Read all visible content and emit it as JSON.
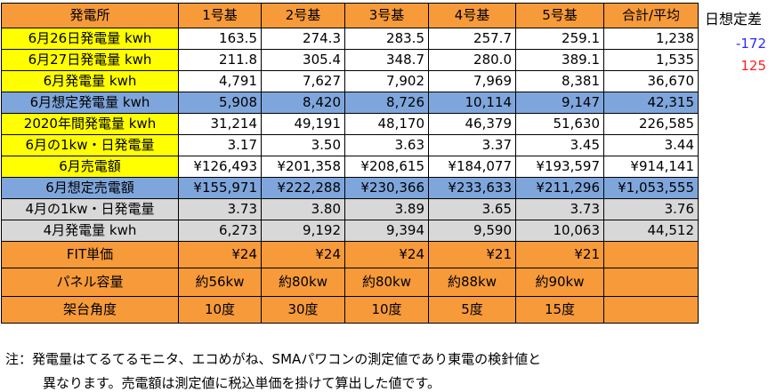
{
  "header": [
    "発電所",
    "1号基",
    "2号基",
    "3号基",
    "4号基",
    "5号基",
    "合計/平均"
  ],
  "rows": [
    {
      "label": "6月26日発電量 kwh",
      "values": [
        "163.5",
        "274.3",
        "283.5",
        "257.7",
        "259.1",
        "1,238"
      ]
    },
    {
      "label": "6月27日発電量 kwh",
      "values": [
        "211.8",
        "305.4",
        "348.7",
        "280.0",
        "389.1",
        "1,535"
      ]
    },
    {
      "label": "6月発電量 kwh",
      "values": [
        "4,791",
        "7,627",
        "7,902",
        "7,969",
        "8,381",
        "36,670"
      ]
    },
    {
      "label": "6月想定発電量 kwh",
      "values": [
        "5,908",
        "8,420",
        "8,726",
        "10,114",
        "9,147",
        "42,315"
      ]
    },
    {
      "label": "2020年間発電量 kwh",
      "values": [
        "31,214",
        "49,191",
        "48,170",
        "46,379",
        "51,630",
        "226,585"
      ]
    },
    {
      "label": "6月の1kw・日発電量",
      "values": [
        "3.17",
        "3.50",
        "3.63",
        "3.37",
        "3.45",
        "3.44"
      ]
    },
    {
      "label": "6月売電額",
      "values": [
        "¥126,493",
        "¥201,358",
        "¥208,615",
        "¥184,077",
        "¥193,597",
        "¥914,141"
      ]
    },
    {
      "label": "6月想定売電額",
      "values": [
        "¥155,971",
        "¥222,288",
        "¥230,366",
        "¥233,633",
        "¥211,296",
        "¥1,053,555"
      ]
    },
    {
      "label": "4月の1kw・日発電量",
      "values": [
        "3.73",
        "3.80",
        "3.89",
        "3.65",
        "3.73",
        "3.76"
      ]
    },
    {
      "label": "4月発電量 kwh",
      "values": [
        "6,273",
        "9,192",
        "9,394",
        "9,590",
        "10,063",
        "44,512"
      ]
    },
    {
      "label": "FIT単価",
      "values": [
        "¥24",
        "¥24",
        "¥24",
        "¥21",
        "¥21",
        ""
      ]
    },
    {
      "label": "パネル容量",
      "values": [
        "約56kw",
        "約80kw",
        "約80kw",
        "約88kw",
        "約90kw",
        ""
      ]
    },
    {
      "label": "架台角度",
      "values": [
        "10度",
        "30度",
        "10度",
        "5度",
        "15度",
        ""
      ]
    }
  ],
  "side": {
    "title": "日想定差",
    "diff_26": "-172",
    "diff_27": "125"
  },
  "colors": {
    "orange": "#f79a3a",
    "yellow": "#ffff00",
    "blue": "#7fa6dc",
    "gray": "#d8d8d8",
    "diff_negative": "#2a2aff",
    "diff_positive": "#ff2020"
  },
  "note": {
    "line1": "注：発電量はてるてるモニタ、エコめがね、SMAパワコンの測定値であり東電の検針値と",
    "line2": "異なります。売電額は測定値に税込単価を掛けて算出した値です。"
  }
}
